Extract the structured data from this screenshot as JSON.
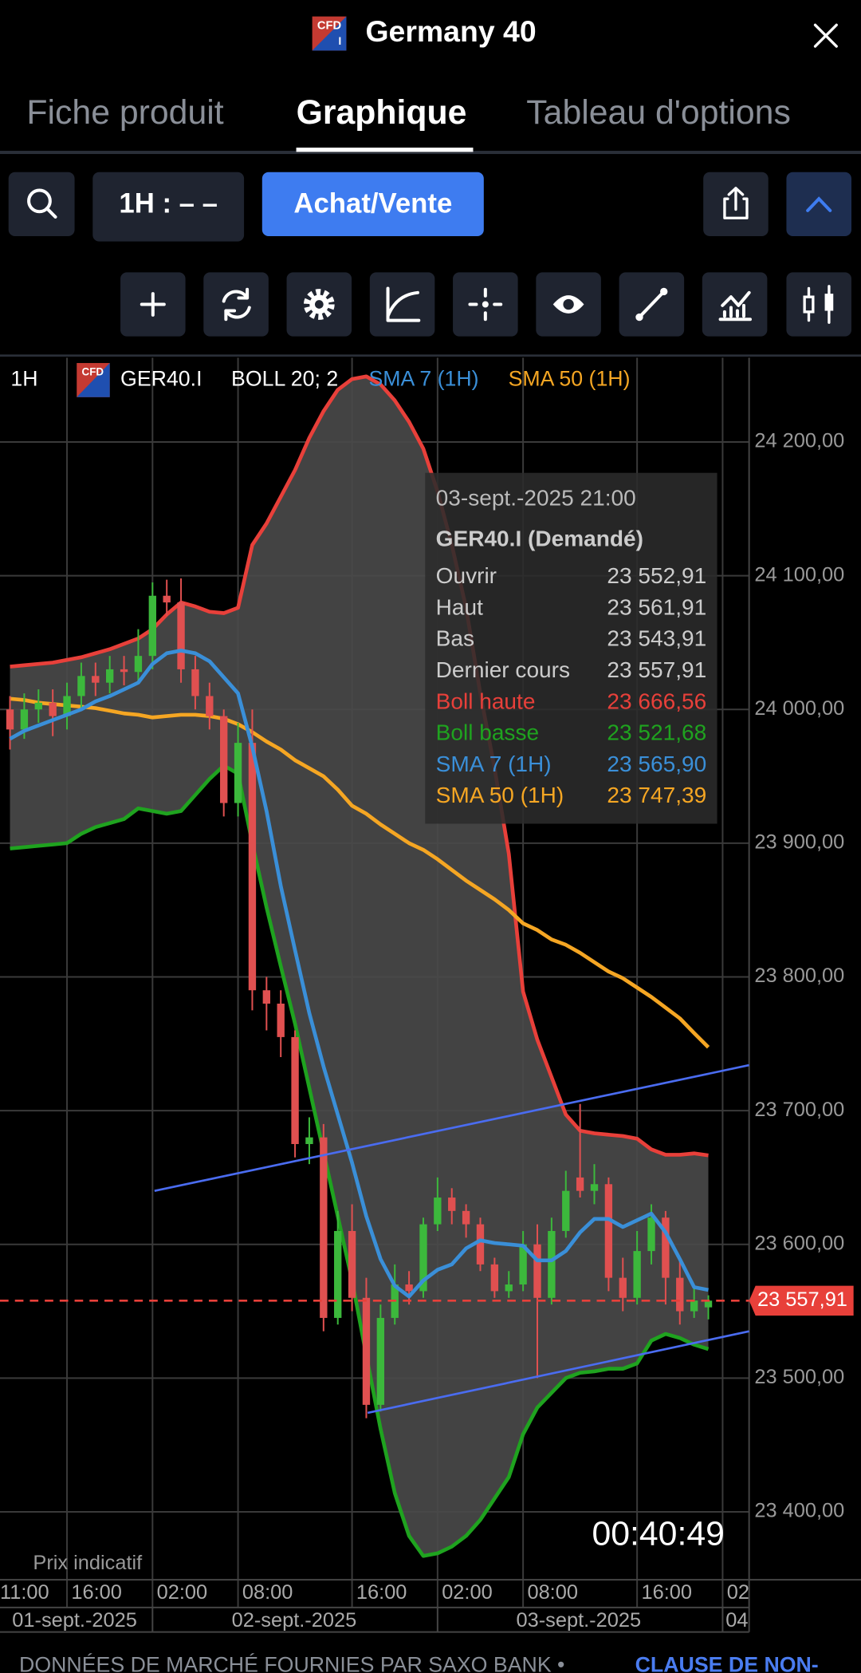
{
  "ui": {
    "badge": "CFD",
    "badge_sub": "I",
    "title": "Germany 40",
    "tabs": [
      "Fiche produit",
      "Graphique",
      "Tableau d'options"
    ],
    "interval_button": "1H : – –",
    "trade_button": "Achat/Vente",
    "indicative": "Prix indicatif",
    "timer": "00:40:49",
    "footer_text": "DONNÉES DE MARCHÉ FOURNIES PAR SAXO BANK •",
    "footer_link": "CLAUSE DE NON-"
  },
  "chart_data": {
    "type": "candlestick",
    "interval": "1H",
    "symbol": "GER40.I",
    "indicator": "BOLL 20; 2",
    "categories": [
      "11:00",
      null,
      null,
      null,
      null,
      "16:00",
      null,
      null,
      null,
      null,
      null,
      "02:00",
      null,
      null,
      null,
      null,
      null,
      "08:00",
      null,
      null,
      null,
      null,
      null,
      null,
      null,
      "16:00",
      null,
      null,
      null,
      null,
      null,
      "02:00",
      null,
      null,
      null,
      null,
      null,
      "08:00",
      null,
      null,
      null,
      null,
      null,
      null,
      null,
      "16:00",
      null,
      null,
      null,
      null,
      null,
      "02"
    ],
    "dates": [
      "01-sept.-2025",
      "02-sept.-2025",
      "03-sept.-2025",
      "04"
    ],
    "open": [
      null,
      24000,
      23985,
      24000,
      24005,
      23995,
      24010,
      24025,
      24020,
      24030,
      24028,
      24040,
      24085,
      24080,
      24030,
      24010,
      23995,
      23930,
      23975,
      23790,
      23780,
      23755,
      23675,
      23680,
      23545,
      23610,
      23560,
      23480,
      23545,
      23570,
      23565,
      23615,
      23635,
      23625,
      23615,
      23585,
      23565,
      23570,
      23600,
      23560,
      23610,
      23650,
      23640,
      23645,
      23575,
      23560,
      23595,
      23620,
      23575,
      23550,
      23552.91,
      null
    ],
    "close": [
      null,
      23985,
      24000,
      24005,
      23995,
      24010,
      24025,
      24020,
      24030,
      24028,
      24040,
      24085,
      24080,
      24030,
      24010,
      23995,
      23930,
      23975,
      23790,
      23780,
      23755,
      23675,
      23680,
      23545,
      23610,
      23560,
      23480,
      23545,
      23570,
      23565,
      23615,
      23635,
      23625,
      23615,
      23585,
      23565,
      23570,
      23600,
      23560,
      23610,
      23640,
      23640,
      23645,
      23575,
      23560,
      23595,
      23620,
      23575,
      23550,
      23558,
      23557.91,
      null
    ],
    "high": [
      null,
      24010,
      24012,
      24015,
      24015,
      24020,
      24035,
      24035,
      24040,
      24040,
      24060,
      24095,
      24097,
      24098,
      24040,
      24020,
      24000,
      23990,
      24000,
      23800,
      23790,
      23760,
      23695,
      23690,
      23625,
      23630,
      23575,
      23555,
      23585,
      23580,
      23620,
      23650,
      23642,
      23630,
      23620,
      23590,
      23580,
      23610,
      23615,
      23620,
      23655,
      23705,
      23660,
      23650,
      23590,
      23610,
      23630,
      23625,
      23590,
      23568,
      23561.91,
      null
    ],
    "low": [
      null,
      23970,
      23978,
      23990,
      23980,
      23985,
      24000,
      24010,
      24012,
      24018,
      24020,
      24030,
      24070,
      24020,
      24000,
      23985,
      23920,
      23920,
      23775,
      23760,
      23740,
      23665,
      23660,
      23535,
      23540,
      23550,
      23470,
      23475,
      23540,
      23555,
      23560,
      23610,
      23615,
      23605,
      23580,
      23560,
      23560,
      23565,
      23500,
      23555,
      23605,
      23635,
      23630,
      23565,
      23550,
      23555,
      23585,
      23555,
      23540,
      23545,
      23543.91,
      null
    ],
    "up_color": "#3cb83c",
    "down_color": "#e05050",
    "band_color": "#4a4a4a",
    "series": [
      {
        "name": "Boll haute",
        "color": "#e8403a",
        "values": [
          null,
          24032,
          24033,
          24034,
          24035,
          24037,
          24039,
          24042,
          24045,
          24049,
          24053,
          24060,
          24071,
          24080,
          24077,
          24073,
          24072,
          24076,
          24123,
          24139,
          24159,
          24179,
          24203,
          24223,
          24239,
          24247,
          24249,
          24243,
          24231,
          24215,
          24195,
          24163,
          24123,
          24076,
          24012,
          23956,
          23892,
          23789,
          23753,
          23725,
          23697,
          23685,
          23683,
          23682,
          23681,
          23679,
          23671,
          23667,
          23667,
          23668,
          23666.56,
          null
        ]
      },
      {
        "name": "Boll basse",
        "color": "#1fa31f",
        "values": [
          null,
          23896,
          23897,
          23898,
          23899,
          23900,
          23907,
          23912,
          23915,
          23918,
          23926,
          23924,
          23922,
          23924,
          23936,
          23948,
          23958,
          23952,
          23900,
          23852,
          23808,
          23765,
          23717,
          23669,
          23621,
          23573,
          23517,
          23462,
          23414,
          23382,
          23367,
          23369,
          23374,
          23382,
          23394,
          23410,
          23426,
          23458,
          23478,
          23489,
          23500,
          23504,
          23505,
          23507,
          23507,
          23511,
          23528,
          23533,
          23530,
          23525,
          23521.68,
          null
        ]
      },
      {
        "name": "SMA 7 (1H)",
        "color": "#3a8fd8",
        "values": [
          null,
          23978,
          23984,
          23988,
          23992,
          23996,
          24000,
          24006,
          24010,
          24015,
          24020,
          24034,
          24042,
          24044,
          24042,
          24036,
          24024,
          24012,
          23972,
          23924,
          23868,
          23820,
          23773,
          23733,
          23697,
          23661,
          23621,
          23589,
          23569,
          23561,
          23573,
          23581,
          23585,
          23597,
          23603,
          23601,
          23600,
          23599,
          23588,
          23588,
          23595,
          23609,
          23619,
          23619,
          23613,
          23618,
          23623,
          23609,
          23589,
          23568,
          23565.9,
          null
        ]
      },
      {
        "name": "SMA 50 (1H)",
        "color": "#f5a623",
        "values": [
          null,
          24008,
          24007,
          24005,
          24004,
          24003,
          24002,
          24001,
          23999,
          23997,
          23996,
          23994,
          23995,
          23996,
          23996,
          23995,
          23993,
          23989,
          23983,
          23976,
          23970,
          23962,
          23956,
          23950,
          23940,
          23928,
          23922,
          23914,
          23907,
          23900,
          23895,
          23888,
          23880,
          23872,
          23865,
          23858,
          23850,
          23840,
          23835,
          23828,
          23824,
          23818,
          23811,
          23804,
          23799,
          23792,
          23785,
          23777,
          23769,
          23758,
          23747.39,
          null
        ]
      }
    ],
    "trend_lines": [
      {
        "color": "#4a6cf0",
        "values": [
          23640,
          23734
        ]
      },
      {
        "color": "#4a6cf0",
        "values": [
          23474,
          23535
        ]
      }
    ],
    "last_price": {
      "value": 23557.91,
      "label": "23 557,91",
      "color": "#e8403a"
    },
    "ylim": [
      23350,
      24263
    ],
    "yticks": [
      {
        "value": 24200,
        "label": "24 200,00"
      },
      {
        "value": 24100,
        "label": "24 100,00"
      },
      {
        "value": 24000,
        "label": "24 000,00"
      },
      {
        "value": 23900,
        "label": "23 900,00"
      },
      {
        "value": 23800,
        "label": "23 800,00"
      },
      {
        "value": 23700,
        "label": "23 700,00"
      },
      {
        "value": 23600,
        "label": "23 600,00"
      },
      {
        "value": 23500,
        "label": "23 500,00"
      },
      {
        "value": 23400,
        "label": "23 400,00"
      }
    ],
    "grid": true,
    "tooltip": {
      "time": "03-sept.-2025 21:00",
      "title": "GER40.I (Demandé)",
      "rows": [
        {
          "label": "Ouvrir",
          "value": "23 552,91",
          "color": "#cccccc"
        },
        {
          "label": "Haut",
          "value": "23 561,91",
          "color": "#cccccc"
        },
        {
          "label": "Bas",
          "value": "23 543,91",
          "color": "#cccccc"
        },
        {
          "label": "Dernier cours",
          "value": "23 557,91",
          "color": "#cccccc"
        },
        {
          "label": "Boll haute",
          "value": "23 666,56",
          "color": "#e8403a"
        },
        {
          "label": "Boll basse",
          "value": "23 521,68",
          "color": "#1fa31f"
        },
        {
          "label": "SMA 7 (1H)",
          "value": "23 565,90",
          "color": "#3a8fd8"
        },
        {
          "label": "SMA 50 (1H)",
          "value": "23 747,39",
          "color": "#f5a623"
        }
      ]
    }
  }
}
